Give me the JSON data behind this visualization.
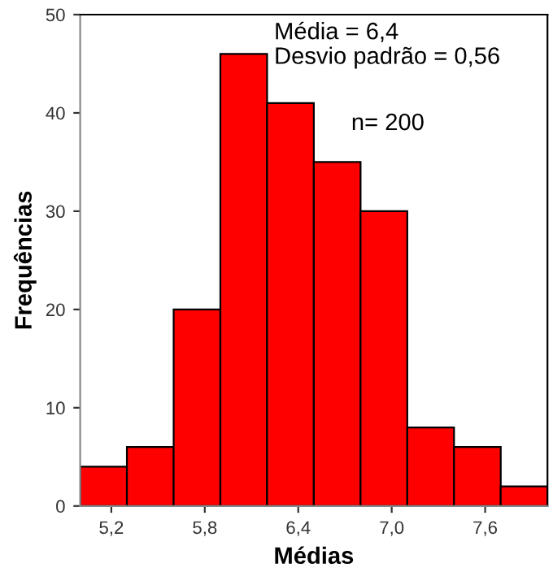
{
  "chart_data": {
    "type": "histogram",
    "xlabel": "Médias",
    "ylabel": "Frequências",
    "bins": [
      5.0,
      5.3,
      5.6,
      5.9,
      6.2,
      6.5,
      6.8,
      7.1,
      7.4,
      7.7,
      8.0
    ],
    "values": [
      4,
      6,
      20,
      46,
      41,
      35,
      30,
      8,
      6,
      2
    ],
    "color": "#ff0000",
    "xlim": [
      5.0,
      8.0
    ],
    "xticks": [
      {
        "value": 5.2,
        "label": "5,2"
      },
      {
        "value": 5.8,
        "label": "5,8"
      },
      {
        "value": 6.4,
        "label": "6,4"
      },
      {
        "value": 7.0,
        "label": "7,0"
      },
      {
        "value": 7.6,
        "label": "7,6"
      }
    ],
    "ylim": [
      0,
      50
    ],
    "yticks": [
      0,
      10,
      20,
      30,
      40,
      50
    ],
    "grid": false,
    "annotations": [
      "Média = 6,4\nDesvio padrão = 0,56",
      "n= 200"
    ]
  }
}
